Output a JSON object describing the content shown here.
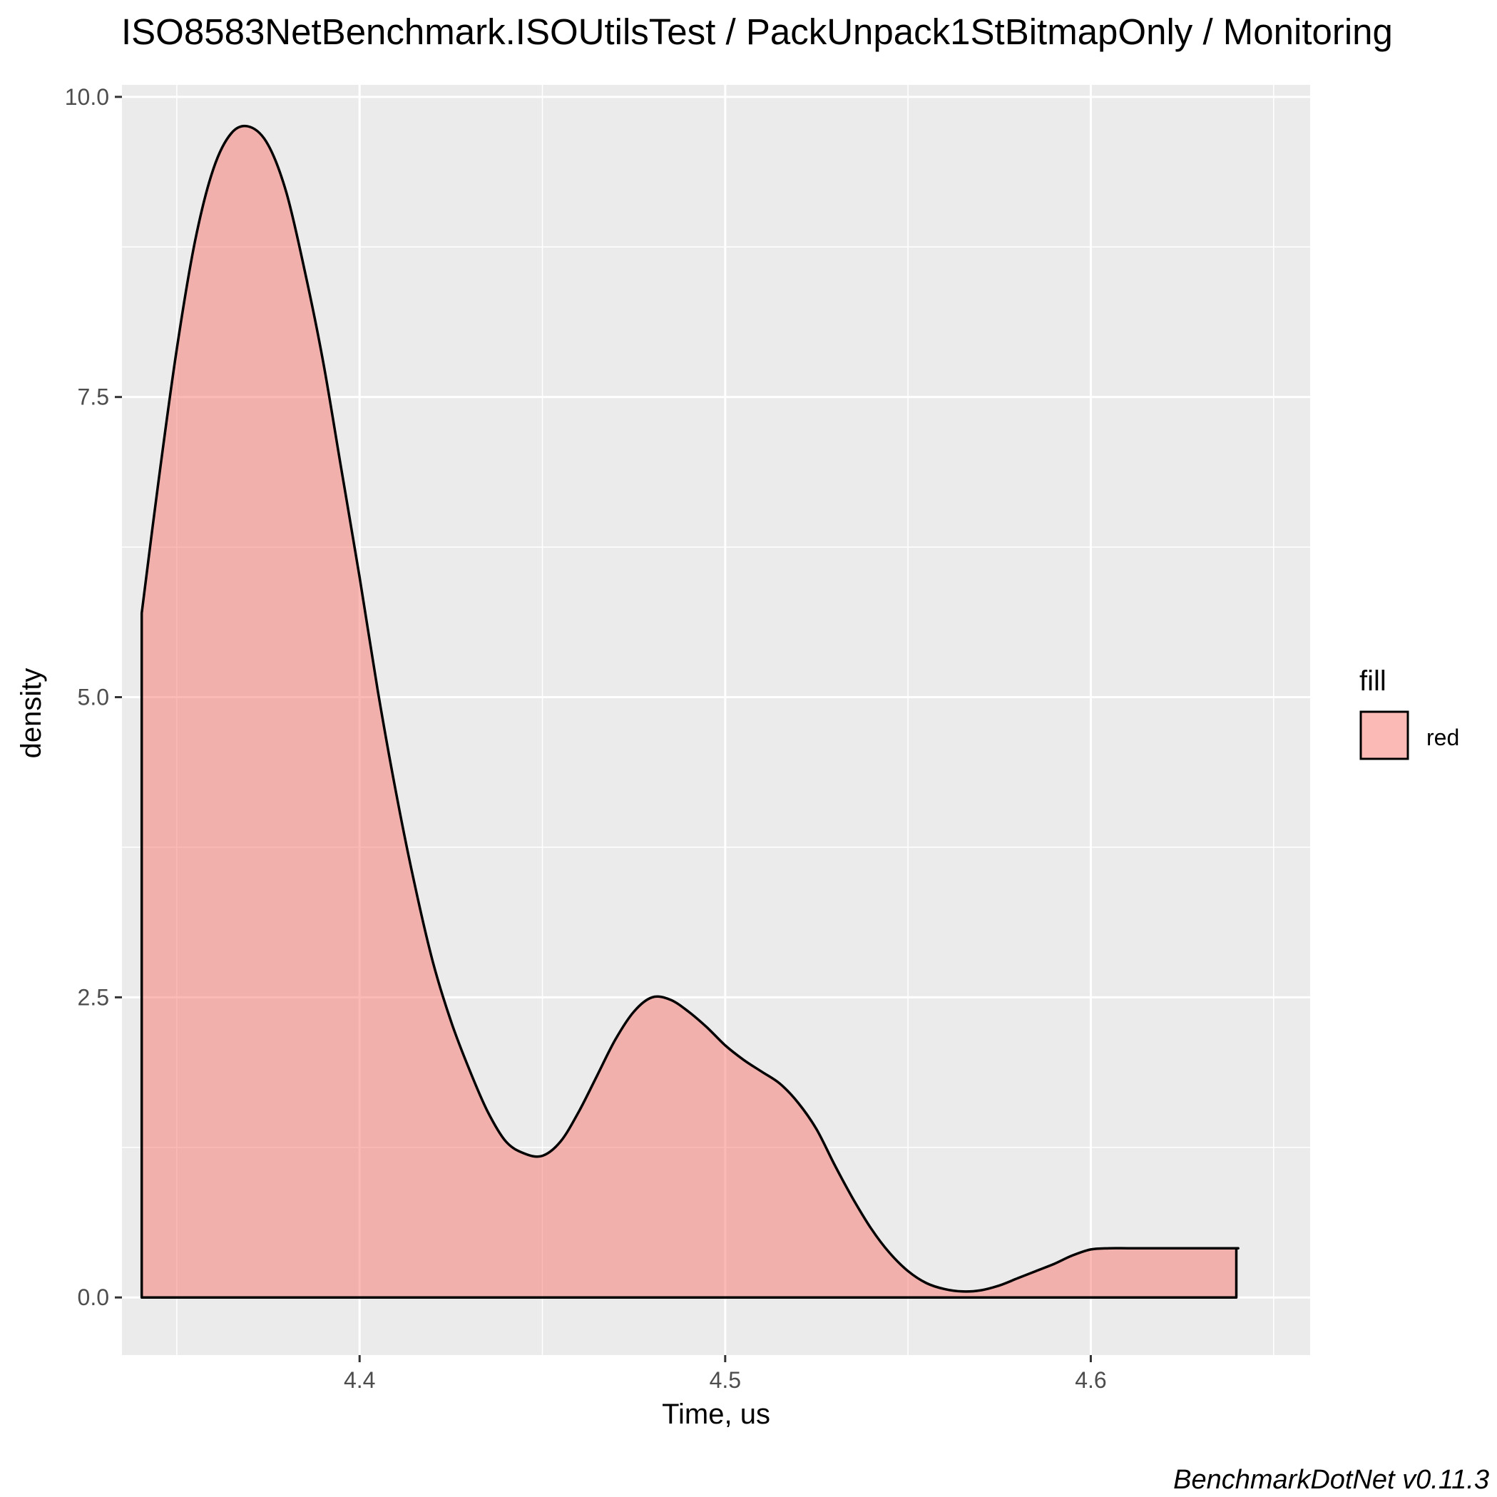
{
  "chart_data": {
    "type": "area",
    "title": "ISO8583NetBenchmark.ISOUtilsTest / PackUnpack1StBitmapOnly / Monitoring",
    "xlabel": "Time, us",
    "ylabel": "density",
    "caption": "BenchmarkDotNet v0.11.3",
    "xlim": [
      4.335,
      4.66
    ],
    "ylim": [
      -0.48,
      10.1
    ],
    "x_ticks": [
      4.4,
      4.5,
      4.6
    ],
    "x_tick_labels": [
      "4.4",
      "4.5",
      "4.6"
    ],
    "y_ticks": [
      0,
      2.5,
      5,
      7.5,
      10
    ],
    "y_tick_labels": [
      "0.0",
      "2.5",
      "5.0",
      "7.5",
      "10.0"
    ],
    "grid": true,
    "panel_background": "#ebebeb",
    "legend": {
      "title": "fill",
      "position": "right",
      "entries": [
        {
          "label": "red",
          "color": "#F8766D"
        }
      ]
    },
    "series": [
      {
        "name": "red",
        "fill": "#F8766D",
        "fill_opacity": 0.5,
        "stroke": "#000000",
        "x": [
          4.3404,
          4.3404,
          4.345,
          4.35,
          4.355,
          4.36,
          4.365,
          4.37,
          4.375,
          4.38,
          4.385,
          4.39,
          4.395,
          4.4,
          4.405,
          4.41,
          4.415,
          4.42,
          4.425,
          4.43,
          4.435,
          4.44,
          4.445,
          4.45,
          4.455,
          4.46,
          4.465,
          4.47,
          4.475,
          4.48,
          4.485,
          4.49,
          4.495,
          4.5,
          4.505,
          4.51,
          4.515,
          4.52,
          4.525,
          4.53,
          4.535,
          4.54,
          4.545,
          4.55,
          4.555,
          4.56,
          4.565,
          4.57,
          4.575,
          4.58,
          4.585,
          4.59,
          4.595,
          4.6,
          4.605,
          4.61,
          4.615,
          4.62,
          4.625,
          4.63,
          4.635,
          4.64,
          4.6398,
          4.6398
        ],
        "y": [
          0,
          5.7,
          6.8,
          7.9,
          8.8,
          9.4,
          9.7,
          9.75,
          9.6,
          9.2,
          8.55,
          7.8,
          6.9,
          6.0,
          5.05,
          4.2,
          3.45,
          2.8,
          2.3,
          1.9,
          1.55,
          1.3,
          1.2,
          1.18,
          1.3,
          1.55,
          1.85,
          2.15,
          2.38,
          2.5,
          2.48,
          2.38,
          2.25,
          2.1,
          1.98,
          1.88,
          1.78,
          1.62,
          1.4,
          1.1,
          0.82,
          0.57,
          0.37,
          0.22,
          0.12,
          0.07,
          0.05,
          0.06,
          0.1,
          0.16,
          0.22,
          0.28,
          0.35,
          0.4,
          0.41,
          0.41,
          0.41,
          0.41,
          0.41,
          0.41,
          0.41,
          0.41,
          0.41,
          0
        ]
      }
    ]
  }
}
